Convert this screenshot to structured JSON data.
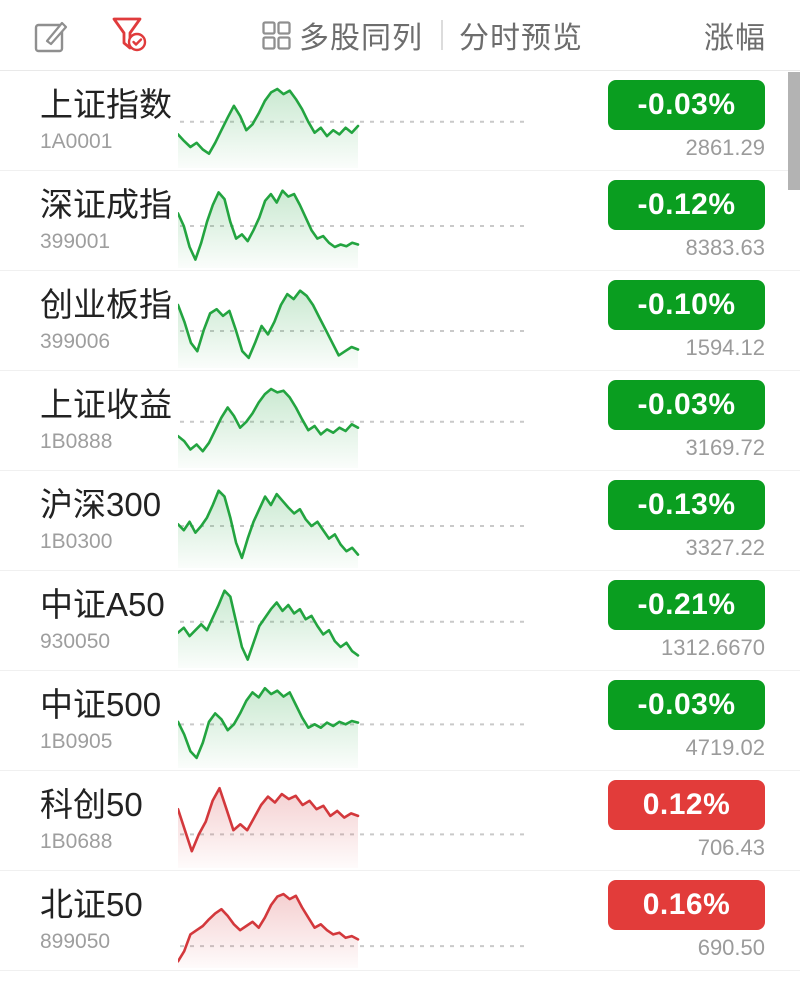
{
  "toolbar": {
    "multi_stock_label": "多股同列",
    "timeshare_label": "分时预览",
    "sort_label": "涨幅"
  },
  "colors": {
    "up_badge": "#e23c3a",
    "down_badge": "#0a9e20",
    "up_line": "#d3383c",
    "down_line": "#23a440",
    "baseline": "#c9c9c9",
    "filter_icon": "#e03b3c",
    "gray_icon": "#8f8f8f"
  },
  "indices": [
    {
      "name": "上证指数",
      "code": "1A0001",
      "change": "-0.03%",
      "value": "2861.29",
      "trend": "down",
      "baseline": 45,
      "points": [
        60,
        68,
        75,
        70,
        78,
        83,
        70,
        55,
        40,
        26,
        38,
        55,
        48,
        35,
        20,
        10,
        6,
        12,
        8,
        18,
        30,
        45,
        58,
        52,
        62,
        55,
        60,
        52,
        58,
        50
      ]
    },
    {
      "name": "深证成指",
      "code": "399001",
      "change": "-0.12%",
      "value": "8383.63",
      "trend": "down",
      "baseline": 50,
      "points": [
        35,
        50,
        75,
        90,
        70,
        45,
        25,
        10,
        18,
        45,
        65,
        60,
        68,
        55,
        40,
        20,
        12,
        22,
        8,
        15,
        12,
        25,
        40,
        55,
        65,
        62,
        70,
        75,
        72,
        74,
        70,
        72
      ]
    },
    {
      "name": "创业板指",
      "code": "399006",
      "change": "-0.10%",
      "value": "1594.12",
      "trend": "down",
      "baseline": 56,
      "points": [
        25,
        45,
        70,
        80,
        55,
        35,
        30,
        38,
        32,
        55,
        80,
        88,
        70,
        50,
        60,
        45,
        25,
        12,
        18,
        8,
        14,
        25,
        40,
        55,
        70,
        85,
        80,
        75,
        78
      ]
    },
    {
      "name": "上证收益",
      "code": "1B0888",
      "change": "-0.03%",
      "value": "3169.72",
      "trend": "down",
      "baseline": 45,
      "points": [
        62,
        68,
        78,
        72,
        80,
        70,
        55,
        40,
        28,
        38,
        52,
        45,
        35,
        22,
        12,
        6,
        10,
        8,
        16,
        28,
        42,
        55,
        50,
        60,
        54,
        58,
        52,
        56,
        48,
        52
      ]
    },
    {
      "name": "沪深300",
      "code": "1B0300",
      "change": "-0.13%",
      "value": "3327.22",
      "trend": "down",
      "baseline": 50,
      "points": [
        48,
        55,
        45,
        58,
        50,
        40,
        25,
        8,
        15,
        40,
        70,
        88,
        65,
        45,
        30,
        15,
        25,
        12,
        20,
        28,
        35,
        30,
        42,
        50,
        45,
        55,
        65,
        60,
        72,
        80,
        76,
        84
      ]
    },
    {
      "name": "中证A50",
      "code": "930050",
      "change": "-0.21%",
      "value": "1312.6670",
      "trend": "down",
      "baseline": 45,
      "points": [
        58,
        52,
        62,
        55,
        48,
        55,
        40,
        25,
        8,
        15,
        45,
        75,
        90,
        70,
        50,
        40,
        30,
        22,
        32,
        25,
        35,
        30,
        42,
        38,
        50,
        60,
        55,
        68,
        75,
        70,
        80,
        85
      ]
    },
    {
      "name": "中证500",
      "code": "1B0905",
      "change": "-0.03%",
      "value": "4719.02",
      "trend": "down",
      "baseline": 48,
      "points": [
        45,
        60,
        80,
        88,
        70,
        45,
        35,
        42,
        55,
        48,
        35,
        20,
        10,
        16,
        5,
        12,
        8,
        15,
        10,
        25,
        40,
        52,
        48,
        52,
        46,
        50,
        45,
        48,
        44,
        46
      ]
    },
    {
      "name": "科创50",
      "code": "1B0688",
      "change": "0.12%",
      "value": "706.43",
      "trend": "up",
      "baseline": 60,
      "points": [
        30,
        55,
        80,
        60,
        45,
        20,
        5,
        30,
        55,
        48,
        55,
        40,
        25,
        15,
        22,
        12,
        18,
        14,
        25,
        20,
        30,
        26,
        38,
        32,
        40,
        35,
        38
      ]
    },
    {
      "name": "北证50",
      "code": "899050",
      "change": "0.16%",
      "value": "690.50",
      "trend": "up",
      "baseline": 74,
      "points": [
        92,
        80,
        60,
        55,
        50,
        42,
        35,
        30,
        38,
        48,
        55,
        50,
        45,
        52,
        40,
        25,
        15,
        12,
        18,
        14,
        28,
        40,
        52,
        48,
        55,
        60,
        58,
        64,
        62,
        66
      ]
    }
  ]
}
